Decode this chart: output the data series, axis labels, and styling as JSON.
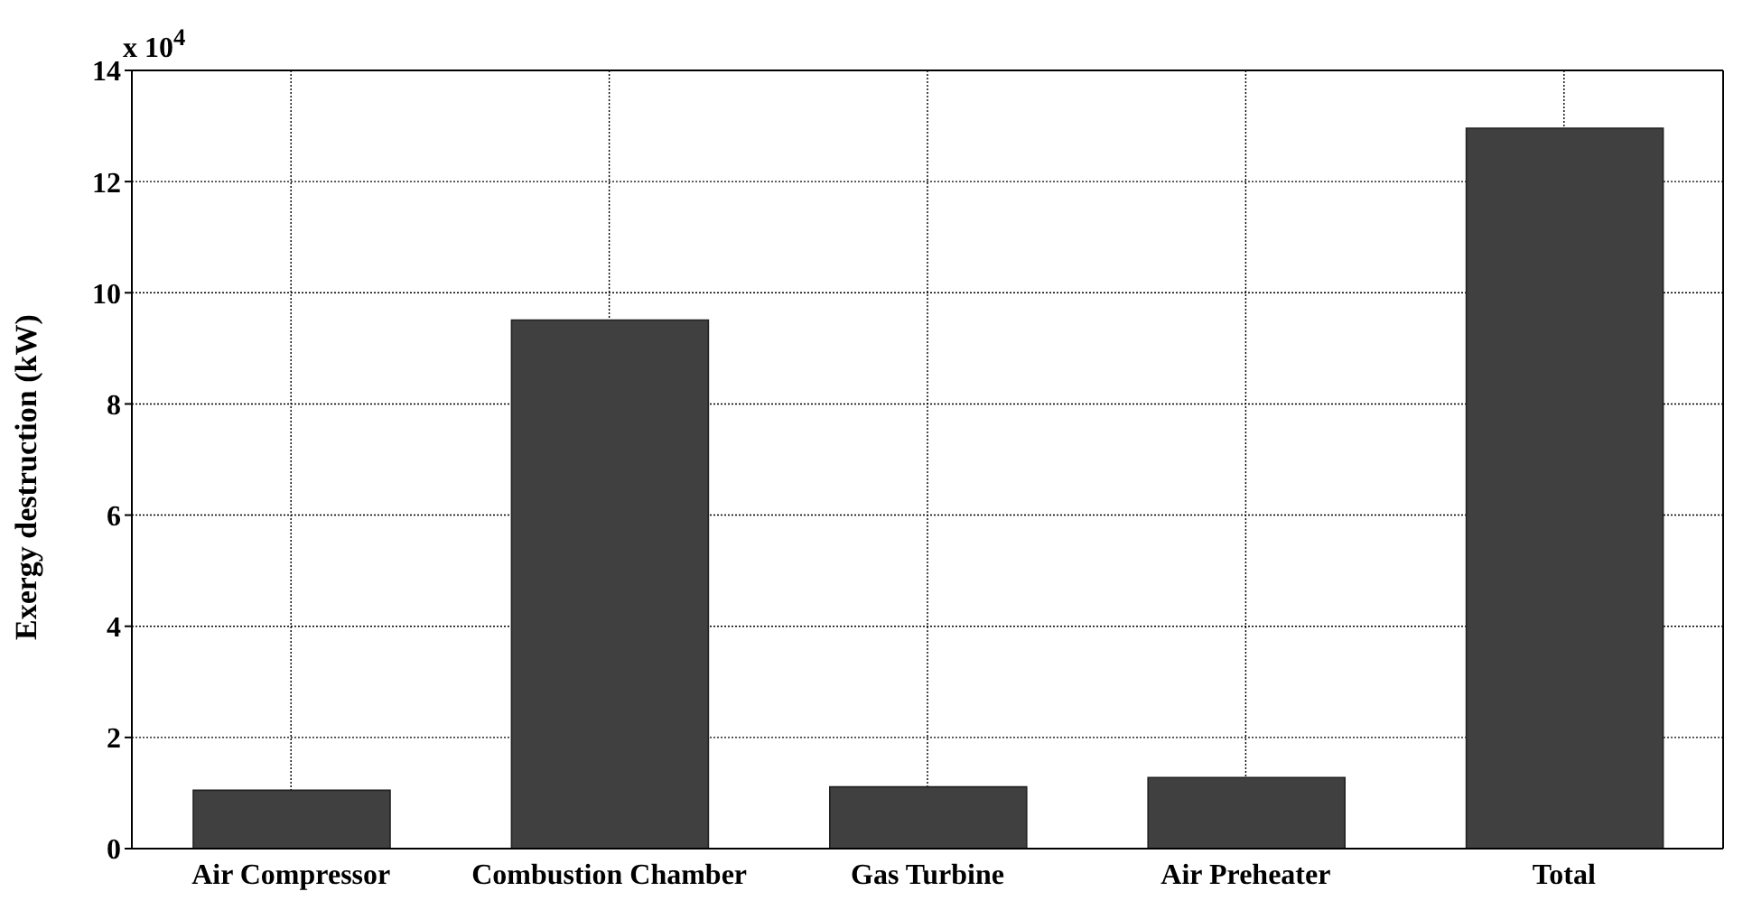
{
  "chart_data": {
    "type": "bar",
    "ylabel": "Exergy destruction (kW)",
    "categories": [
      "Air Compressor",
      "Combustion Chamber",
      "Gas Turbine",
      "Air Preheater",
      "Total"
    ],
    "values": [
      1.05,
      9.51,
      1.11,
      1.28,
      12.96
    ],
    "color": "#404040",
    "ylim": [
      0,
      14
    ],
    "yticks": [
      0,
      2,
      4,
      6,
      8,
      10,
      12,
      14
    ],
    "grid": true,
    "annotations": [
      "x 10$^{4}$"
    ]
  }
}
